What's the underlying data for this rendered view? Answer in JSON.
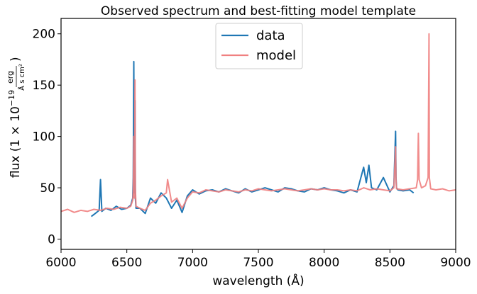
{
  "chart_data": {
    "type": "line",
    "title": "Observed spectrum and best-fitting model template",
    "xlabel": "wavelength (Å)",
    "ylabel": {
      "prefix": "flux (1 × 10",
      "exponent": "−19",
      "unit_numerator": "erg",
      "unit_denominator": "Å s cm²",
      "suffix": ")"
    },
    "xlim": [
      6000,
      9000
    ],
    "ylim": [
      -10,
      215
    ],
    "xticks": [
      6000,
      6500,
      7000,
      7500,
      8000,
      8500,
      9000
    ],
    "yticks": [
      0,
      50,
      100,
      150,
      200
    ],
    "grid": false,
    "legend_position": "top-center",
    "colors": {
      "data": "#1f77b4",
      "model": "#f08080"
    },
    "series": [
      {
        "name": "data",
        "x": [
          6230,
          6260,
          6290,
          6300,
          6310,
          6340,
          6380,
          6420,
          6460,
          6500,
          6530,
          6545,
          6549,
          6553,
          6557,
          6562,
          6565,
          6570,
          6600,
          6640,
          6680,
          6720,
          6760,
          6800,
          6840,
          6880,
          6920,
          6960,
          7000,
          7050,
          7100,
          7150,
          7200,
          7250,
          7300,
          7350,
          7400,
          7450,
          7500,
          7550,
          7600,
          7650,
          7700,
          7750,
          7800,
          7850,
          7900,
          7950,
          8000,
          8050,
          8100,
          8150,
          8200,
          8250,
          8300,
          8320,
          8340,
          8360,
          8400,
          8450,
          8500,
          8530,
          8543,
          8546,
          8550,
          8560,
          8600,
          8650,
          8680
        ],
        "y": [
          22,
          25,
          28,
          58,
          27,
          30,
          28,
          32,
          29,
          30,
          33,
          40,
          60,
          173,
          45,
          135,
          40,
          30,
          30,
          25,
          40,
          35,
          45,
          40,
          30,
          38,
          26,
          42,
          48,
          44,
          47,
          48,
          46,
          49,
          47,
          45,
          49,
          46,
          48,
          50,
          48,
          46,
          50,
          49,
          47,
          46,
          49,
          48,
          50,
          48,
          47,
          45,
          48,
          46,
          70,
          55,
          72,
          50,
          48,
          60,
          46,
          52,
          105,
          60,
          50,
          48,
          47,
          48,
          45
        ]
      },
      {
        "name": "model",
        "x": [
          6000,
          6050,
          6100,
          6150,
          6200,
          6250,
          6300,
          6350,
          6400,
          6450,
          6500,
          6530,
          6545,
          6549,
          6553,
          6557,
          6562,
          6565,
          6570,
          6600,
          6640,
          6680,
          6720,
          6760,
          6800,
          6810,
          6840,
          6880,
          6920,
          6960,
          7000,
          7050,
          7100,
          7150,
          7200,
          7250,
          7300,
          7350,
          7400,
          7450,
          7500,
          7550,
          7600,
          7650,
          7700,
          7750,
          7800,
          7850,
          7900,
          7950,
          8000,
          8050,
          8100,
          8150,
          8200,
          8250,
          8300,
          8350,
          8400,
          8450,
          8500,
          8530,
          8543,
          8546,
          8550,
          8600,
          8650,
          8700,
          8710,
          8716,
          8722,
          8740,
          8770,
          8790,
          8797,
          8800,
          8810,
          8850,
          8900,
          8950,
          9000
        ],
        "y": [
          27,
          29,
          26,
          28,
          27,
          29,
          28,
          30,
          29,
          31,
          30,
          32,
          38,
          45,
          100,
          40,
          155,
          50,
          32,
          30,
          28,
          35,
          38,
          42,
          45,
          58,
          36,
          40,
          30,
          40,
          46,
          45,
          48,
          47,
          46,
          48,
          47,
          46,
          48,
          47,
          49,
          48,
          47,
          48,
          49,
          48,
          47,
          48,
          49,
          48,
          49,
          48,
          48,
          47,
          48,
          47,
          50,
          48,
          49,
          48,
          47,
          50,
          90,
          58,
          49,
          48,
          49,
          50,
          58,
          103,
          58,
          50,
          52,
          60,
          200,
          60,
          49,
          48,
          49,
          47,
          48
        ]
      }
    ]
  }
}
